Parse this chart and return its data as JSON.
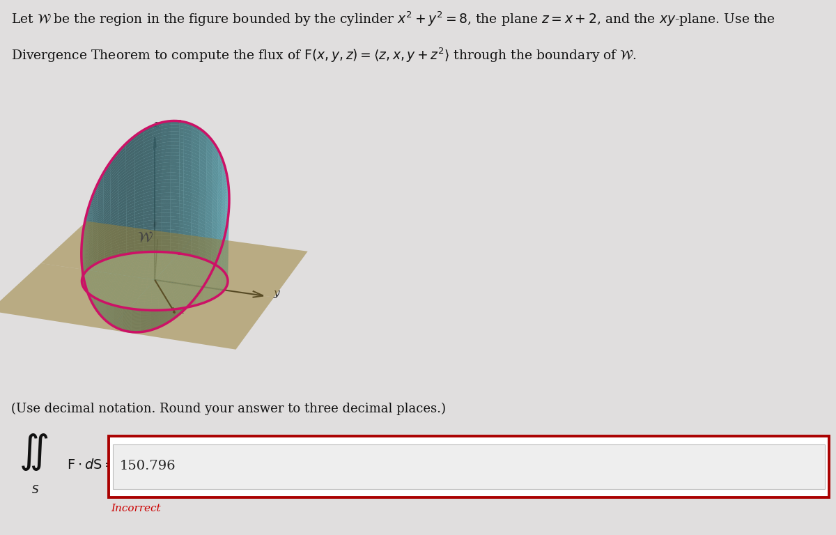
{
  "bg_color": "#e0dede",
  "title_line1": "Let $\\mathcal{W}$ be the region in the figure bounded by the cylinder $x^2 + y^2 = 8$, the plane $z = x + 2$, and the $xy$-plane. Use the",
  "title_line2": "Divergence Theorem to compute the flux of $\\mathrm{F}(x, y, z) = \\langle z, x, y + z^2 \\rangle$ through the boundary of $\\mathcal{W}$.",
  "instruction": "(Use decimal notation. Round your answer to three decimal places.)",
  "answer_value": "150.796",
  "answer_label": "Incorrect",
  "answer_color": "#cc0000",
  "cylinder_color": "#7dd8e8",
  "cylinder_alpha": 0.75,
  "plane_color": "#c8a84b",
  "plane_alpha": 0.55,
  "curve_color": "#cc1166",
  "axis_color": "#111111",
  "text_color": "#111111",
  "input_box_border": "#aa0000",
  "w_label_color": "#444444",
  "view_elev": 22,
  "view_azim": 200
}
